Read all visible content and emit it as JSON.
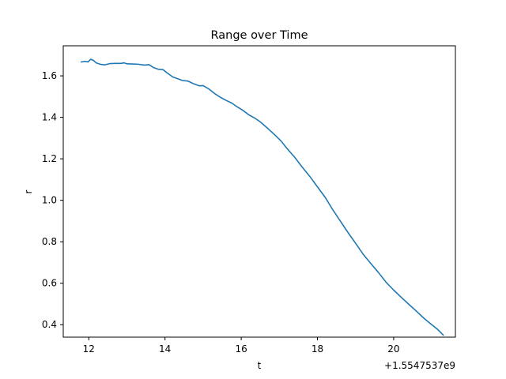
{
  "chart_data": {
    "type": "line",
    "title": "Range over Time",
    "xlabel": "t",
    "ylabel": "r",
    "x_offset_label": "+1.5547537e9",
    "xlim": [
      11.33,
      21.62
    ],
    "ylim": [
      0.34,
      1.745
    ],
    "x_ticks": [
      12,
      14,
      16,
      18,
      20
    ],
    "x_tick_labels": [
      "12",
      "14",
      "16",
      "18",
      "20"
    ],
    "y_ticks": [
      0.4,
      0.6,
      0.8,
      1.0,
      1.2,
      1.4,
      1.6
    ],
    "y_tick_labels": [
      "0.4",
      "0.6",
      "0.8",
      "1.0",
      "1.2",
      "1.4",
      "1.6"
    ],
    "grid": false,
    "color": "#1f77b4",
    "series": [
      {
        "x": [
          11.8,
          11.9,
          11.98,
          12.05,
          12.12,
          12.2,
          12.3,
          12.42,
          12.55,
          12.7,
          12.85,
          12.92,
          13.0,
          13.15,
          13.3,
          13.45,
          13.58,
          13.7,
          13.82,
          13.95,
          14.05,
          14.2,
          14.35,
          14.45,
          14.6,
          14.75,
          14.9,
          15.0,
          15.15,
          15.3,
          15.45,
          15.6,
          15.75,
          15.9,
          16.05,
          16.2,
          16.35,
          16.5,
          16.7,
          16.9,
          17.05,
          17.2,
          17.4,
          17.6,
          17.8,
          18.0,
          18.2,
          18.4,
          18.6,
          18.8,
          19.0,
          19.2,
          19.4,
          19.6,
          19.8,
          20.0,
          20.2,
          20.4,
          20.6,
          20.8,
          21.0,
          21.15,
          21.3
        ],
        "y": [
          1.667,
          1.67,
          1.667,
          1.68,
          1.675,
          1.662,
          1.656,
          1.653,
          1.659,
          1.66,
          1.66,
          1.663,
          1.658,
          1.657,
          1.656,
          1.652,
          1.654,
          1.64,
          1.632,
          1.63,
          1.615,
          1.595,
          1.585,
          1.578,
          1.575,
          1.562,
          1.552,
          1.553,
          1.537,
          1.515,
          1.497,
          1.482,
          1.469,
          1.45,
          1.433,
          1.412,
          1.397,
          1.378,
          1.346,
          1.312,
          1.285,
          1.25,
          1.208,
          1.16,
          1.115,
          1.065,
          1.015,
          0.955,
          0.9,
          0.845,
          0.793,
          0.74,
          0.695,
          0.652,
          0.605,
          0.567,
          0.532,
          0.498,
          0.465,
          0.43,
          0.4,
          0.378,
          0.35
        ]
      }
    ]
  }
}
